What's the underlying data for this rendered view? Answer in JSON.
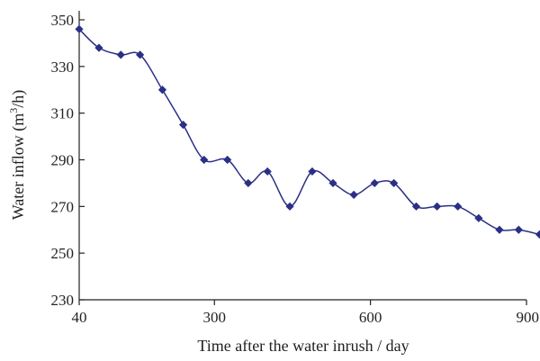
{
  "chart_data": {
    "type": "line",
    "xlabel": "Time after the water inrush / day",
    "ylabel_main": "Water inflow (m",
    "ylabel_sup": "3",
    "ylabel_tail": "/h)",
    "xlim": [
      40,
      900
    ],
    "ylim": [
      230,
      350
    ],
    "x_ticks": [
      40,
      300,
      600,
      900
    ],
    "y_ticks": [
      230,
      250,
      270,
      290,
      310,
      330,
      350
    ],
    "grid": false,
    "marker": "diamond",
    "line_style": "smooth",
    "colors": {
      "series": "#2b2f86"
    },
    "series": [
      {
        "x": [
          40,
          78,
          120,
          157,
          200,
          240,
          280,
          325,
          365,
          402,
          445,
          488,
          528,
          568,
          608,
          645,
          688,
          728,
          768,
          808,
          848,
          885,
          925
        ],
        "values": [
          346,
          338,
          335,
          335,
          320,
          305,
          290,
          290,
          280,
          285,
          270,
          285,
          280,
          275,
          280,
          280,
          270,
          270,
          270,
          265,
          260,
          260,
          258
        ]
      }
    ]
  }
}
